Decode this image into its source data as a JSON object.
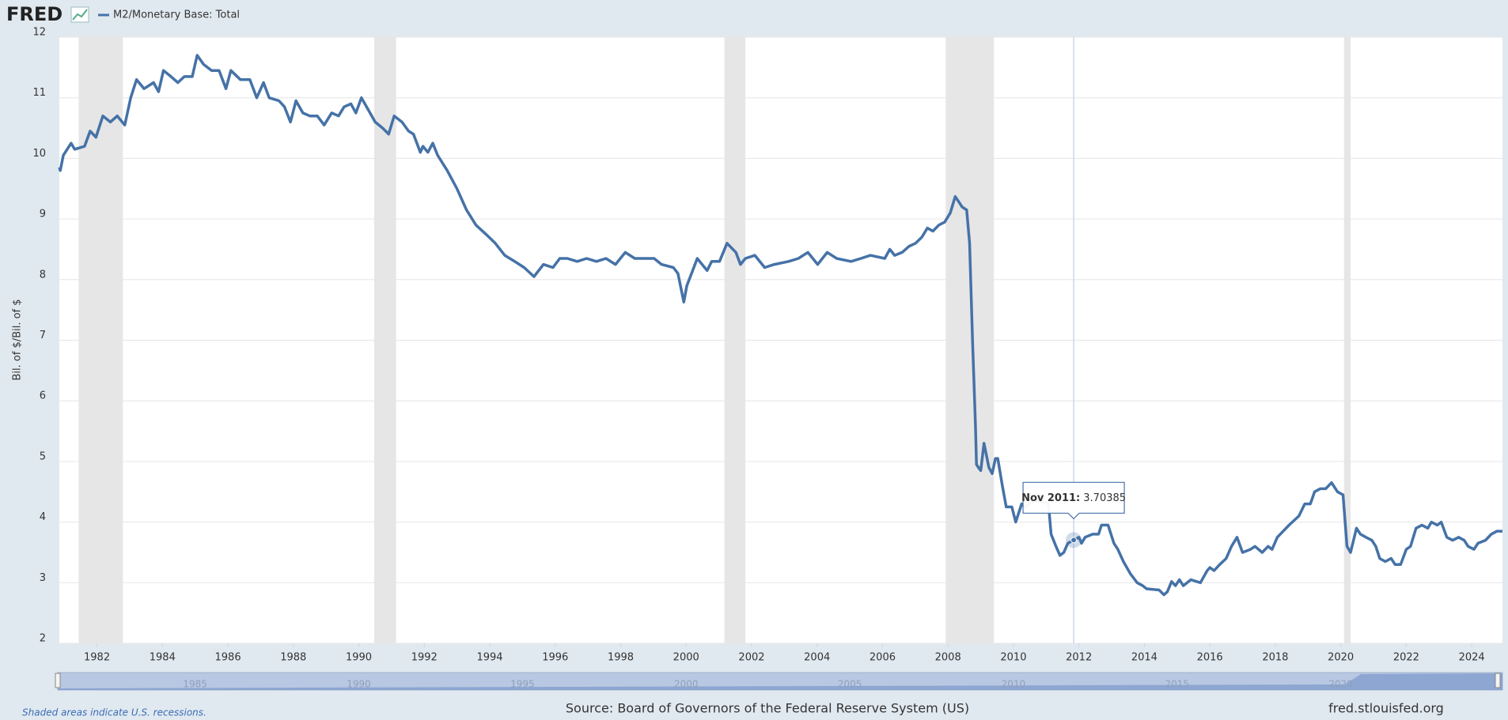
{
  "chart_data": {
    "type": "line",
    "logo": "FRED",
    "y_label": "Bil. of $/Bil. of $",
    "note": "Shaded areas indicate U.S. recessions.",
    "source": "Source: Board of Governors of the Federal Reserve System (US)",
    "site": "fred.stlouisfed.org",
    "x": [
      1980.85,
      1980.88,
      1980.97,
      1981.21,
      1981.32,
      1981.62,
      1981.79,
      1981.97,
      1982.18,
      1982.41,
      1982.62,
      1982.85,
      1983.03,
      1983.21,
      1983.44,
      1983.73,
      1983.88,
      1984.03,
      1984.26,
      1984.47,
      1984.67,
      1984.91,
      1985.06,
      1985.26,
      1985.5,
      1985.73,
      1985.94,
      1986.09,
      1986.38,
      1986.67,
      1986.88,
      1987.09,
      1987.26,
      1987.56,
      1987.73,
      1987.91,
      1988.08,
      1988.29,
      1988.5,
      1988.73,
      1988.94,
      1989.17,
      1989.38,
      1989.55,
      1989.76,
      1989.91,
      1990.08,
      1990.29,
      1990.5,
      1990.73,
      1990.91,
      1991.08,
      1991.32,
      1991.52,
      1991.67,
      1991.88,
      1991.96,
      1992.11,
      1992.26,
      1992.41,
      1992.7,
      1993.0,
      1993.29,
      1993.58,
      1993.88,
      1994.17,
      1994.46,
      1994.76,
      1995.05,
      1995.35,
      1995.64,
      1995.93,
      1996.14,
      1996.37,
      1996.67,
      1996.96,
      1997.26,
      1997.55,
      1997.84,
      1998.14,
      1998.43,
      1999.02,
      1999.25,
      1999.61,
      1999.75,
      1999.93,
      2000.02,
      2000.2,
      2000.34,
      2000.64,
      2000.78,
      2001.02,
      2001.25,
      2001.52,
      2001.66,
      2001.81,
      2002.1,
      2002.4,
      2002.69,
      2003.13,
      2003.43,
      2003.72,
      2004.02,
      2004.31,
      2004.6,
      2005.04,
      2005.34,
      2005.63,
      2006.07,
      2006.22,
      2006.37,
      2006.6,
      2006.81,
      2007.01,
      2007.2,
      2007.37,
      2007.54,
      2007.72,
      2007.9,
      2008.07,
      2008.22,
      2008.31,
      2008.43,
      2008.57,
      2008.66,
      2008.75,
      2008.84,
      2008.87,
      2008.93,
      2009.0,
      2009.1,
      2009.25,
      2009.35,
      2009.45,
      2009.52,
      2009.66,
      2009.78,
      2009.95,
      2010.07,
      2010.25,
      2010.37,
      2010.57,
      2010.8,
      2011.07,
      2011.15,
      2011.3,
      2011.42,
      2011.54,
      2011.66,
      2011.84,
      2012.0,
      2012.08,
      2012.19,
      2012.42,
      2012.6,
      2012.69,
      2012.89,
      2013.07,
      2013.19,
      2013.36,
      2013.57,
      2013.78,
      2013.95,
      2014.07,
      2014.45,
      2014.6,
      2014.7,
      2014.83,
      2014.95,
      2015.07,
      2015.19,
      2015.42,
      2015.71,
      2015.92,
      2016.0,
      2016.13,
      2016.3,
      2016.5,
      2016.66,
      2016.83,
      2017.0,
      2017.24,
      2017.38,
      2017.6,
      2017.78,
      2017.9,
      2018.06,
      2018.42,
      2018.72,
      2018.9,
      2019.07,
      2019.2,
      2019.37,
      2019.54,
      2019.72,
      2019.9,
      2020.07,
      2020.19,
      2020.3,
      2020.48,
      2020.6,
      2020.77,
      2020.95,
      2021.07,
      2021.19,
      2021.36,
      2021.54,
      2021.66,
      2021.83,
      2022.0,
      2022.13,
      2022.3,
      2022.48,
      2022.66,
      2022.77,
      2022.95,
      2023.07,
      2023.24,
      2023.42,
      2023.6,
      2023.77,
      2023.89,
      2024.07,
      2024.19,
      2024.42,
      2024.6,
      2024.77,
      2024.94
    ],
    "series": [
      {
        "name": "M2/Monetary Base: Total",
        "color": "#4572a7",
        "values": [
          9.85,
          9.8,
          10.05,
          10.25,
          10.15,
          10.2,
          10.45,
          10.35,
          10.7,
          10.6,
          10.7,
          10.55,
          11.0,
          11.3,
          11.15,
          11.25,
          11.1,
          11.45,
          11.35,
          11.25,
          11.35,
          11.35,
          11.7,
          11.55,
          11.45,
          11.45,
          11.15,
          11.45,
          11.3,
          11.3,
          11.0,
          11.25,
          11.0,
          10.95,
          10.85,
          10.6,
          10.95,
          10.75,
          10.7,
          10.7,
          10.55,
          10.75,
          10.7,
          10.85,
          10.9,
          10.75,
          11.0,
          10.8,
          10.6,
          10.5,
          10.4,
          10.7,
          10.6,
          10.45,
          10.4,
          10.1,
          10.2,
          10.1,
          10.25,
          10.05,
          9.8,
          9.5,
          9.15,
          8.9,
          8.75,
          8.6,
          8.4,
          8.3,
          8.2,
          8.05,
          8.25,
          8.2,
          8.35,
          8.35,
          8.3,
          8.35,
          8.3,
          8.35,
          8.25,
          8.45,
          8.35,
          8.35,
          8.25,
          8.2,
          8.1,
          7.63,
          7.9,
          8.15,
          8.35,
          8.15,
          8.3,
          8.3,
          8.6,
          8.45,
          8.25,
          8.35,
          8.4,
          8.2,
          8.25,
          8.3,
          8.35,
          8.45,
          8.25,
          8.45,
          8.35,
          8.3,
          8.35,
          8.4,
          8.35,
          8.5,
          8.4,
          8.45,
          8.55,
          8.6,
          8.7,
          8.85,
          8.8,
          8.9,
          8.95,
          9.1,
          9.37,
          9.3,
          9.2,
          9.15,
          8.6,
          7.0,
          5.6,
          4.95,
          4.9,
          4.85,
          5.3,
          4.9,
          4.8,
          5.05,
          5.05,
          4.6,
          4.25,
          4.25,
          4.0,
          4.3,
          4.25,
          4.35,
          4.35,
          4.3,
          3.8,
          3.6,
          3.45,
          3.5,
          3.65,
          3.70385,
          3.75,
          3.65,
          3.75,
          3.8,
          3.8,
          3.95,
          3.95,
          3.65,
          3.55,
          3.35,
          3.15,
          3.0,
          2.95,
          2.9,
          2.88,
          2.8,
          2.85,
          3.02,
          2.95,
          3.05,
          2.95,
          3.05,
          3.0,
          3.2,
          3.25,
          3.2,
          3.3,
          3.4,
          3.6,
          3.75,
          3.5,
          3.55,
          3.6,
          3.5,
          3.6,
          3.55,
          3.75,
          3.95,
          4.1,
          4.3,
          4.3,
          4.5,
          4.55,
          4.55,
          4.65,
          4.5,
          4.45,
          3.6,
          3.5,
          3.9,
          3.8,
          3.75,
          3.7,
          3.6,
          3.4,
          3.35,
          3.4,
          3.3,
          3.3,
          3.55,
          3.6,
          3.9,
          3.95,
          3.9,
          4.0,
          3.95,
          4.0,
          3.75,
          3.7,
          3.75,
          3.7,
          3.6,
          3.55,
          3.65,
          3.7,
          3.8,
          3.85,
          3.85
        ]
      }
    ],
    "recessions": [
      [
        1981.44,
        1982.79
      ],
      [
        1990.47,
        1991.14
      ],
      [
        2001.17,
        2001.81
      ],
      [
        2007.93,
        2009.4
      ],
      [
        2020.1,
        2020.3
      ]
    ],
    "xlim": [
      1980.85,
      2024.94
    ],
    "ylim": [
      2,
      12
    ],
    "xticks": [
      1982,
      1984,
      1986,
      1988,
      1990,
      1992,
      1994,
      1996,
      1998,
      2000,
      2002,
      2004,
      2006,
      2008,
      2010,
      2012,
      2014,
      2016,
      2018,
      2020,
      2022,
      2024
    ],
    "yticks": [
      2,
      3,
      4,
      5,
      6,
      7,
      8,
      9,
      10,
      11,
      12
    ],
    "grid": true,
    "navigator_ticks": [
      1985,
      1990,
      1995,
      2000,
      2005,
      2010,
      2015,
      2020
    ],
    "tooltip": {
      "x": 2011.84,
      "label": "Nov 2011:",
      "value": 3.70385
    }
  }
}
